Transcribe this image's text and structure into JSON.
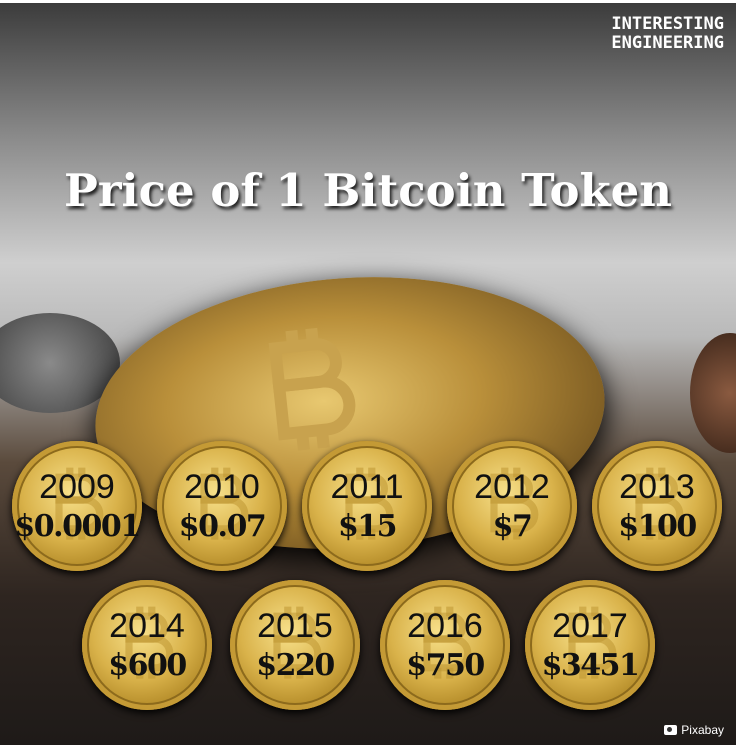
{
  "brand": {
    "line1": "INTERESTING",
    "line2": "ENGINEERING"
  },
  "title": "Price of 1 Bitcoin Token",
  "coins": [
    {
      "year": "2009",
      "price": "$0.0001"
    },
    {
      "year": "2010",
      "price": "$0.07"
    },
    {
      "year": "2011",
      "price": "$15"
    },
    {
      "year": "2012",
      "price": "$7"
    },
    {
      "year": "2013",
      "price": "$100"
    },
    {
      "year": "2014",
      "price": "$600"
    },
    {
      "year": "2015",
      "price": "$220"
    },
    {
      "year": "2016",
      "price": "$750"
    },
    {
      "year": "2017",
      "price": "$3451"
    }
  ],
  "credit": "Pixabay",
  "colors": {
    "gold": "#d9b24a",
    "text": "#111111",
    "title": "#ffffff"
  }
}
